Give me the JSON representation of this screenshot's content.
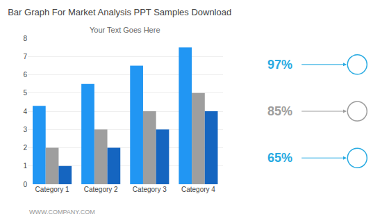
{
  "chart_data": {
    "type": "bar",
    "title": "Bar Graph For Market Analysis PPT Samples Download",
    "subtitle": "Your Text Goes Here",
    "categories": [
      "Category 1",
      "Category 2",
      "Category 3",
      "Category 4"
    ],
    "series": [
      {
        "color": "#2196F3",
        "values": [
          4.3,
          5.5,
          6.5,
          7.5
        ]
      },
      {
        "color": "#9E9E9E",
        "values": [
          2.0,
          3.0,
          4.0,
          5.0
        ]
      },
      {
        "color": "#1565C0",
        "values": [
          1.0,
          2.0,
          3.0,
          4.0
        ]
      }
    ],
    "ylim": [
      0,
      8
    ],
    "yticks": [
      0,
      1,
      2,
      3,
      4,
      5,
      6,
      7,
      8
    ],
    "grid": true,
    "annotations": [
      {
        "text": "97%",
        "color": "#29ABE2"
      },
      {
        "text": "85%",
        "color": "#9E9E9E"
      },
      {
        "text": "65%",
        "color": "#29ABE2"
      },
      {
        "text": "WWW.COMPANY.COM",
        "color": "#999999"
      }
    ]
  }
}
